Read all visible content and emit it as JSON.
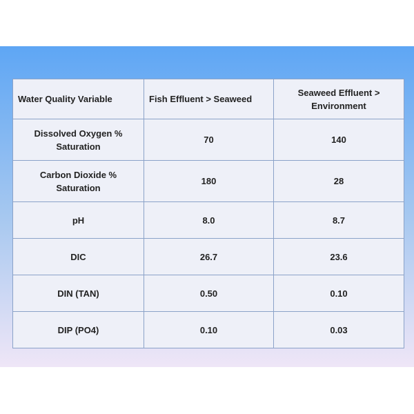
{
  "table": {
    "headers": [
      "Water Quality Variable",
      "Fish Effluent > Seaweed",
      "Seaweed Effluent > Environment"
    ],
    "rows": [
      {
        "variable": "Dissolved Oxygen % Saturation",
        "fish_to_seaweed": "70",
        "seaweed_to_environment": "140"
      },
      {
        "variable": "Carbon Dioxide % Saturation",
        "fish_to_seaweed": "180",
        "seaweed_to_environment": "28"
      },
      {
        "variable": "pH",
        "fish_to_seaweed": "8.0",
        "seaweed_to_environment": "8.7"
      },
      {
        "variable": "DIC",
        "fish_to_seaweed": "26.7",
        "seaweed_to_environment": "23.6"
      },
      {
        "variable": "DIN (TAN)",
        "fish_to_seaweed": "0.50",
        "seaweed_to_environment": "0.10"
      },
      {
        "variable": "DIP (PO4)",
        "fish_to_seaweed": "0.10",
        "seaweed_to_environment": "0.03"
      }
    ]
  },
  "colors": {
    "slide_gradient_top": "#5ea6f4",
    "slide_gradient_bottom": "#efe6f7",
    "table_background": "#eef0f8",
    "table_border": "#8aa2c8"
  }
}
